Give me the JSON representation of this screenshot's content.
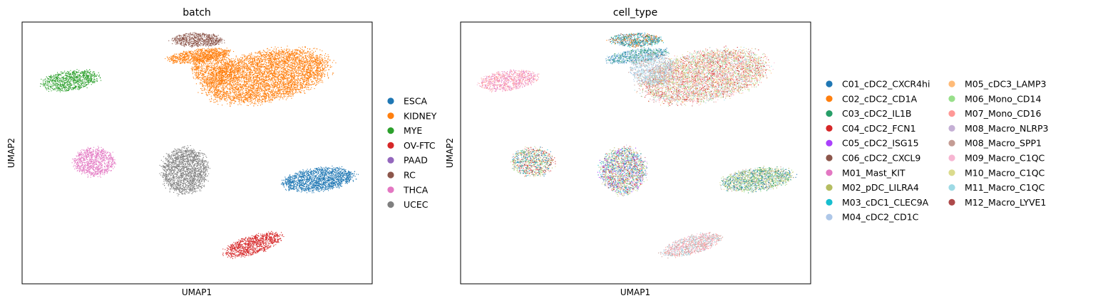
{
  "chart_data": [
    {
      "type": "scatter",
      "title": "batch",
      "xlabel": "UMAP1",
      "ylabel": "UMAP2",
      "xlim": [
        -8,
        14
      ],
      "ylim": [
        -6,
        12
      ],
      "grid": false,
      "ticks": false,
      "legend": "right",
      "legend_columns": 1,
      "series": [
        {
          "name": "ESCA",
          "color": "#1f77b4"
        },
        {
          "name": "KIDNEY",
          "color": "#ff7f0e"
        },
        {
          "name": "MYE",
          "color": "#2ca02c"
        },
        {
          "name": "OV-FTC",
          "color": "#d62728"
        },
        {
          "name": "PAAD",
          "color": "#9467bd"
        },
        {
          "name": "RC",
          "color": "#8c564b"
        },
        {
          "name": "THCA",
          "color": "#e377c2"
        },
        {
          "name": "UCEC",
          "color": "#7f7f7f"
        }
      ],
      "clusters": [
        {
          "series": "RC",
          "cx": 3.0,
          "cy": 10.8,
          "rx": 1.6,
          "ry": 0.45,
          "rot": 0,
          "n": 700
        },
        {
          "series": "KIDNEY",
          "cx": 3.1,
          "cy": 9.7,
          "rx": 1.9,
          "ry": 0.45,
          "rot": 8,
          "n": 900
        },
        {
          "series": "KIDNEY",
          "cx": 7.3,
          "cy": 8.3,
          "rx": 3.9,
          "ry": 1.65,
          "rot": 12,
          "n": 5200
        },
        {
          "series": "KIDNEY",
          "cx": 4.0,
          "cy": 8.8,
          "rx": 1.3,
          "ry": 1.1,
          "rot": 0,
          "n": 900
        },
        {
          "series": "MYE",
          "cx": -5.0,
          "cy": 8.0,
          "rx": 1.8,
          "ry": 0.65,
          "rot": 8,
          "n": 900
        },
        {
          "series": "THCA",
          "cx": -3.5,
          "cy": 2.4,
          "rx": 1.3,
          "ry": 0.95,
          "rot": 0,
          "n": 900
        },
        {
          "series": "UCEC",
          "cx": 2.2,
          "cy": 1.8,
          "rx": 1.4,
          "ry": 1.55,
          "rot": 0,
          "n": 1900
        },
        {
          "series": "ESCA",
          "cx": 10.6,
          "cy": 1.2,
          "rx": 2.2,
          "ry": 0.75,
          "rot": 8,
          "n": 1700
        },
        {
          "series": "OV-FTC",
          "cx": 6.5,
          "cy": -3.3,
          "rx": 1.9,
          "ry": 0.6,
          "rot": 18,
          "n": 1000
        }
      ]
    },
    {
      "type": "scatter",
      "title": "cell_type",
      "xlabel": "UMAP1",
      "ylabel": "UMAP2",
      "xlim": [
        -8,
        14
      ],
      "ylim": [
        -6,
        12
      ],
      "grid": false,
      "ticks": false,
      "legend": "right",
      "legend_columns": 2,
      "series": [
        {
          "name": "C01_cDC2_CXCR4hi",
          "color": "#1f77b4"
        },
        {
          "name": "C02_cDC2_CD1A",
          "color": "#ff7f0e"
        },
        {
          "name": "C03_cDC2_IL1B",
          "color": "#279e68"
        },
        {
          "name": "C04_cDC2_FCN1",
          "color": "#d62728"
        },
        {
          "name": "C05_cDC2_ISG15",
          "color": "#aa40fc"
        },
        {
          "name": "C06_cDC2_CXCL9",
          "color": "#8c564b"
        },
        {
          "name": "M01_Mast_KIT",
          "color": "#e377c2"
        },
        {
          "name": "M02_pDC_LILRA4",
          "color": "#b5bd61"
        },
        {
          "name": "M03_cDC1_CLEC9A",
          "color": "#17becf"
        },
        {
          "name": "M04_cDC2_CD1C",
          "color": "#aec7e8"
        },
        {
          "name": "M05_cDC3_LAMP3",
          "color": "#ffbb78"
        },
        {
          "name": "M06_Mono_CD14",
          "color": "#98df8a"
        },
        {
          "name": "M07_Mono_CD16",
          "color": "#ff9896"
        },
        {
          "name": "M08_Macro_NLRP3",
          "color": "#c5b0d5"
        },
        {
          "name": "M08_Macro_SPP1",
          "color": "#c49c94"
        },
        {
          "name": "M09_Macro_C1QC",
          "color": "#f7b6d2"
        },
        {
          "name": "M10_Macro_C1QC",
          "color": "#dbdb8d"
        },
        {
          "name": "M11_Macro_C1QC",
          "color": "#9edae5"
        },
        {
          "name": "M12_Macro_LYVE1",
          "color": "#ad494a"
        }
      ],
      "clusters": [
        {
          "mix": [
            "C01_cDC2_CXCR4hi",
            "C03_cDC2_IL1B",
            "C06_cDC2_CXCL9",
            "M04_cDC2_CD1C",
            "C02_cDC2_CD1A",
            "M03_cDC1_CLEC9A"
          ],
          "cx": 3.0,
          "cy": 10.8,
          "rx": 1.6,
          "ry": 0.45,
          "rot": 0,
          "n": 700
        },
        {
          "mix": [
            "M04_cDC2_CD1C",
            "M11_Macro_C1QC",
            "C01_cDC2_CXCR4hi",
            "C03_cDC2_IL1B"
          ],
          "cx": 3.1,
          "cy": 9.7,
          "rx": 1.9,
          "ry": 0.45,
          "rot": 8,
          "n": 900
        },
        {
          "mix": [
            "M07_Mono_CD16",
            "M08_Macro_SPP1",
            "M06_Mono_CD14",
            "M09_Macro_C1QC",
            "M11_Macro_C1QC",
            "M10_Macro_C1QC",
            "C04_cDC2_FCN1",
            "M05_cDC3_LAMP3"
          ],
          "cx": 7.3,
          "cy": 8.3,
          "rx": 3.9,
          "ry": 1.65,
          "rot": 12,
          "n": 5200
        },
        {
          "mix": [
            "M04_cDC2_CD1C",
            "M11_Macro_C1QC",
            "M08_Macro_SPP1"
          ],
          "cx": 4.0,
          "cy": 8.8,
          "rx": 1.3,
          "ry": 1.1,
          "rot": 0,
          "n": 900
        },
        {
          "mix": [
            "M07_Mono_CD16",
            "M09_Macro_C1QC",
            "M01_Mast_KIT"
          ],
          "cx": -5.0,
          "cy": 8.0,
          "rx": 1.8,
          "ry": 0.65,
          "rot": 8,
          "n": 900
        },
        {
          "mix": [
            "M02_pDC_LILRA4",
            "M08_Macro_SPP1",
            "M03_cDC1_CLEC9A",
            "M06_Mono_CD14",
            "C01_cDC2_CXCR4hi",
            "M10_Macro_C1QC",
            "C04_cDC2_FCN1",
            "M07_Mono_CD16"
          ],
          "cx": -3.5,
          "cy": 2.4,
          "rx": 1.3,
          "ry": 0.95,
          "rot": 0,
          "n": 900
        },
        {
          "mix": [
            "C04_cDC2_FCN1",
            "M06_Mono_CD14",
            "C01_cDC2_CXCR4hi",
            "M03_cDC1_CLEC9A",
            "M02_pDC_LILRA4",
            "M11_Macro_C1QC",
            "M08_Macro_NLRP3",
            "M07_Mono_CD16",
            "C05_cDC2_ISG15",
            "M10_Macro_C1QC"
          ],
          "cx": 2.2,
          "cy": 1.8,
          "rx": 1.4,
          "ry": 1.55,
          "rot": 0,
          "n": 1900
        },
        {
          "mix": [
            "M10_Macro_C1QC",
            "M06_Mono_CD14",
            "M11_Macro_C1QC",
            "C01_cDC2_CXCR4hi",
            "M08_Macro_SPP1",
            "C03_cDC2_IL1B",
            "M02_pDC_LILRA4"
          ],
          "cx": 10.6,
          "cy": 1.2,
          "rx": 2.2,
          "ry": 0.75,
          "rot": 8,
          "n": 1700
        },
        {
          "mix": [
            "M08_Macro_SPP1",
            "M09_Macro_C1QC",
            "M07_Mono_CD16",
            "M11_Macro_C1QC"
          ],
          "cx": 6.5,
          "cy": -3.3,
          "rx": 1.9,
          "ry": 0.6,
          "rot": 18,
          "n": 1000
        }
      ]
    }
  ]
}
